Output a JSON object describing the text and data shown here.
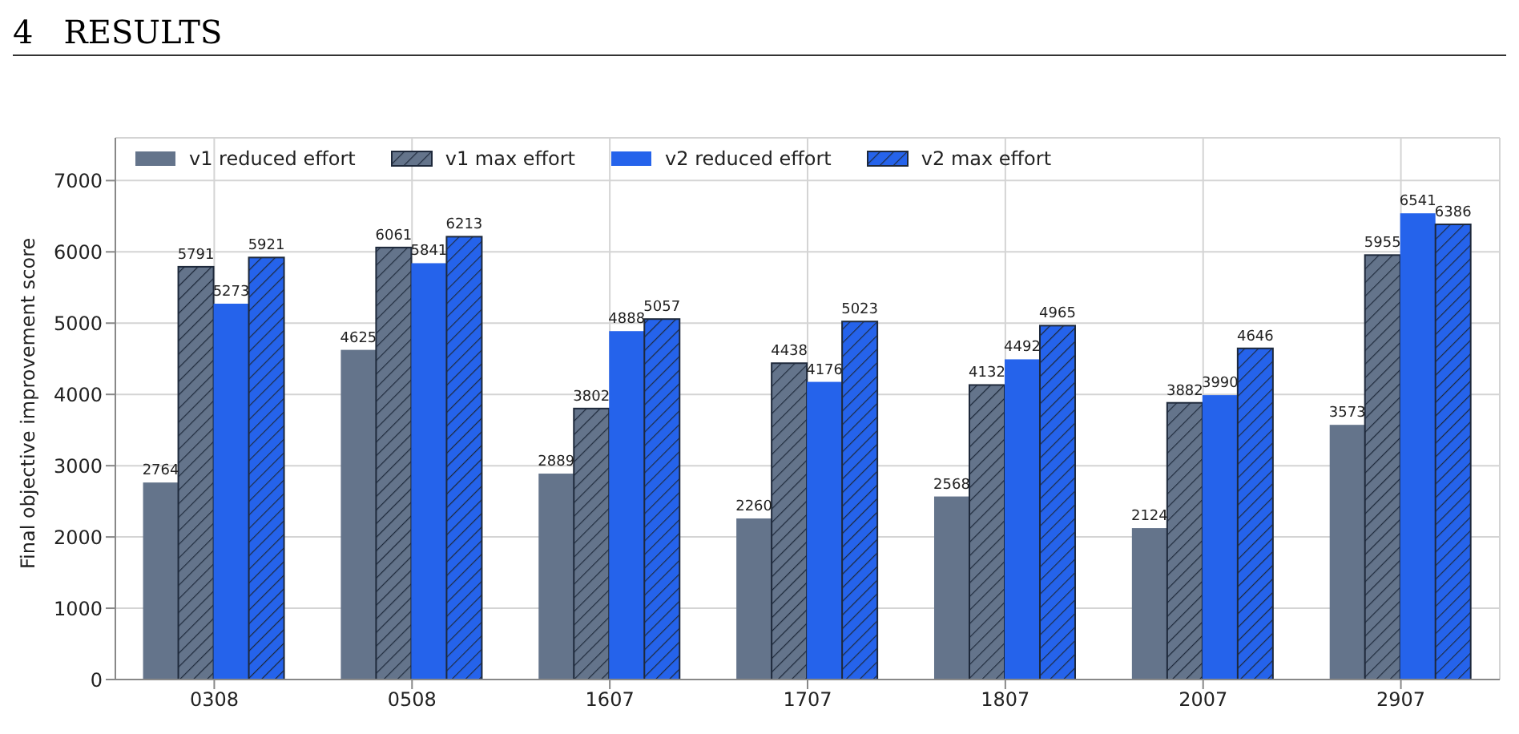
{
  "chart_data": {
    "type": "bar",
    "annotations": [
      "4   RESULTS"
    ],
    "ylabel": "Final objective improvement score",
    "categories": [
      "0308",
      "0508",
      "1607",
      "1707",
      "1807",
      "2007",
      "2907"
    ],
    "series": [
      {
        "name": "v1 reduced effort",
        "color": "#64748b",
        "values": [
          2764,
          4625,
          2889,
          2260,
          2568,
          2124,
          3573
        ]
      },
      {
        "name": "v1 max effort",
        "color": "#64748b",
        "values": [
          5791,
          6061,
          3802,
          4438,
          4132,
          3882,
          5955
        ]
      },
      {
        "name": "v2 reduced effort",
        "color": "#2563eb",
        "values": [
          5273,
          5841,
          4888,
          4176,
          4492,
          3990,
          6541
        ]
      },
      {
        "name": "v2 max effort",
        "color": "#2563eb",
        "values": [
          5921,
          6213,
          5057,
          5023,
          4965,
          4646,
          6386
        ]
      }
    ],
    "ylim": [
      0,
      7600
    ],
    "yticks": [
      0,
      1000,
      2000,
      3000,
      4000,
      5000,
      6000,
      7000
    ],
    "grid": true,
    "legend": "top left",
    "data_labels": true
  }
}
